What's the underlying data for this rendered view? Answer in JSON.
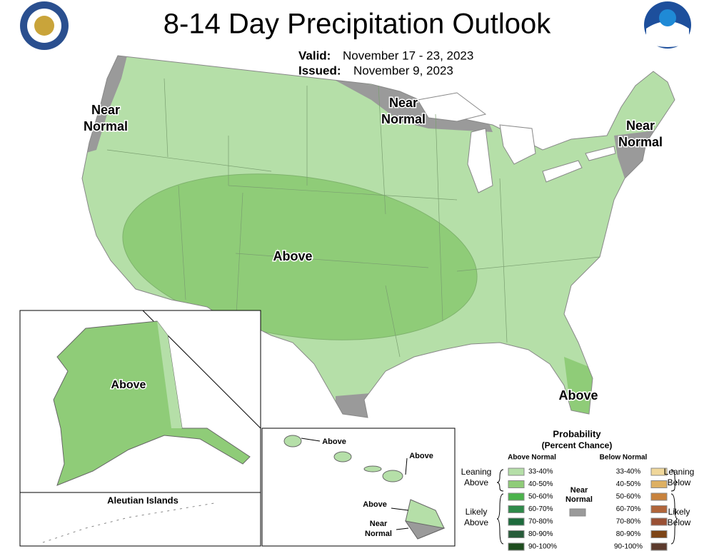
{
  "header": {
    "title": "8-14 Day Precipitation Outlook",
    "valid_label": "Valid:",
    "valid": "November 17 - 23, 2023",
    "issued_label": "Issued:",
    "issued": "November 9, 2023"
  },
  "map_labels": [
    {
      "lines": [
        "Near",
        "Normal"
      ]
    },
    {
      "lines": [
        "Near",
        "Normal"
      ]
    },
    {
      "lines": [
        "Near",
        "Normal"
      ]
    },
    {
      "lines": [
        "Above"
      ]
    },
    {
      "lines": [
        "Above"
      ]
    }
  ],
  "alaska": {
    "label": "Above",
    "aleutian_title": "Aleutian Islands"
  },
  "hawaii": {
    "labels": [
      {
        "lines": [
          "Above"
        ]
      },
      {
        "lines": [
          "Above"
        ]
      },
      {
        "lines": [
          "Above"
        ]
      },
      {
        "lines": [
          "Near",
          "Normal"
        ]
      }
    ]
  },
  "legend": {
    "title": "Probability",
    "subtitle": "(Percent Chance)",
    "above_header": "Above Normal",
    "below_header": "Below Normal",
    "above_items": [
      "33-40%",
      "40-50%",
      "50-60%",
      "60-70%",
      "70-80%",
      "80-90%",
      "90-100%"
    ],
    "below_items": [
      "33-40%",
      "40-50%",
      "50-60%",
      "60-70%",
      "70-80%",
      "80-90%",
      "90-100%"
    ],
    "near_normal": [
      "Near",
      "Normal"
    ],
    "leaning_above": [
      "Leaning",
      "Above"
    ],
    "likely_above": [
      "Likely",
      "Above"
    ],
    "leaning_below": [
      "Leaning",
      "Below"
    ],
    "likely_below": [
      "Likely",
      "Below"
    ]
  }
}
